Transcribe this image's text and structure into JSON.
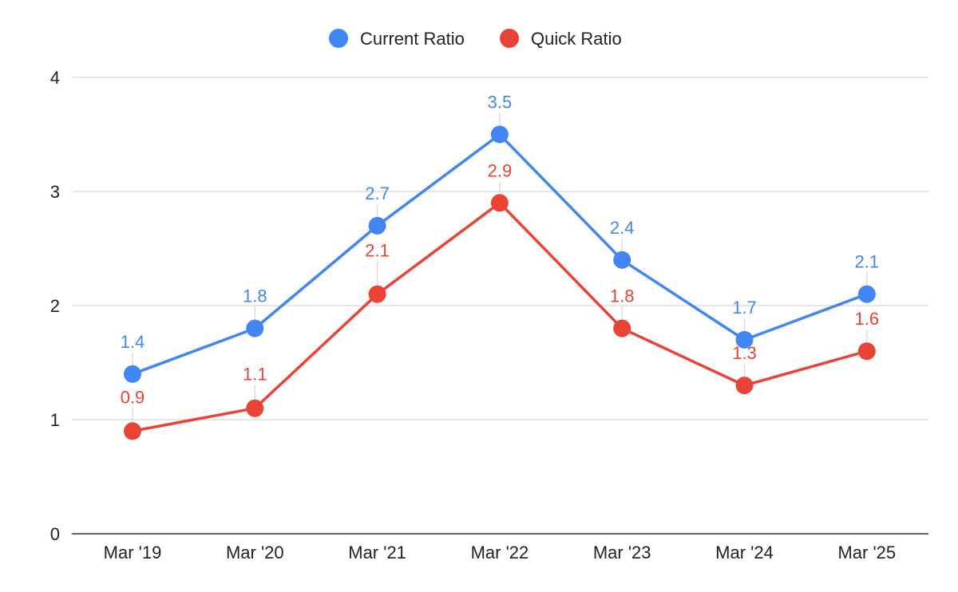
{
  "chart_data": {
    "type": "line",
    "categories": [
      "Mar '19",
      "Mar '20",
      "Mar '21",
      "Mar '22",
      "Mar '23",
      "Mar '24",
      "Mar '25"
    ],
    "series": [
      {
        "name": "Current Ratio",
        "color": "#4285F4",
        "values": [
          1.4,
          1.8,
          2.7,
          3.5,
          2.4,
          1.7,
          2.1
        ]
      },
      {
        "name": "Quick Ratio",
        "color": "#EA4335",
        "values": [
          0.9,
          1.1,
          2.1,
          2.9,
          1.8,
          1.3,
          1.6
        ]
      }
    ],
    "ylim": [
      0,
      4
    ],
    "yticks": [
      0,
      1,
      2,
      3,
      4
    ],
    "grid": true,
    "legend_position": "top-center",
    "data_labels": true
  }
}
